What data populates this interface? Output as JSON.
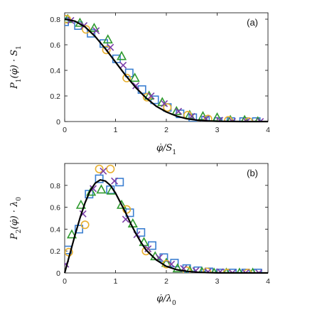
{
  "chart_data": [
    {
      "type": "scatter",
      "panel_label": "(a)",
      "xlabel": "φ̇/S",
      "xlabel_sub": "1",
      "ylabel": "P",
      "ylabel_sub": "1",
      "ylabel_tail": "(φ̇) · S",
      "ylabel_tail_sub": "1",
      "xlim": [
        0,
        4
      ],
      "ylim": [
        0,
        0.85
      ],
      "xticks": [
        "0",
        "1",
        "2",
        "3",
        "4"
      ],
      "yticks": [
        "0",
        "0.2",
        "0.4",
        "0.6",
        "0.8"
      ],
      "xtick_values": [
        0,
        1,
        2,
        3,
        4
      ],
      "ytick_values": [
        0,
        0.2,
        0.4,
        0.6,
        0.8
      ],
      "grid": false,
      "box": true,
      "fit_curve": {
        "name": "fit",
        "color": "#000000",
        "x": [
          0,
          0.2,
          0.4,
          0.6,
          0.8,
          1.0,
          1.2,
          1.4,
          1.6,
          1.8,
          2.0,
          2.2,
          2.4,
          2.6,
          2.8,
          3.0,
          3.5,
          4.0
        ],
        "y": [
          0.8,
          0.785,
          0.74,
          0.665,
          0.57,
          0.465,
          0.36,
          0.265,
          0.185,
          0.12,
          0.075,
          0.043,
          0.022,
          0.011,
          0.005,
          0.002,
          0.0,
          0.0
        ]
      },
      "series": [
        {
          "name": "squares",
          "marker": "square",
          "color": "#3b7fd1",
          "x": [
            0.0,
            0.27,
            0.52,
            0.77,
            1.02,
            1.27,
            1.52,
            1.77,
            2.02,
            2.27,
            2.52,
            2.77,
            3.02,
            3.27,
            3.52,
            3.77
          ],
          "y": [
            0.78,
            0.75,
            0.69,
            0.61,
            0.49,
            0.38,
            0.25,
            0.17,
            0.11,
            0.06,
            0.03,
            0.01,
            0.0,
            0.0,
            0.0,
            0.0
          ]
        },
        {
          "name": "triangles",
          "marker": "triangle",
          "color": "#2e9a2e",
          "x": [
            0.06,
            0.3,
            0.58,
            0.85,
            1.12,
            1.38,
            1.66,
            1.92,
            2.2,
            2.46,
            2.72,
            3.0,
            3.26,
            3.54,
            3.8
          ],
          "y": [
            0.8,
            0.77,
            0.73,
            0.64,
            0.51,
            0.34,
            0.2,
            0.15,
            0.08,
            0.05,
            0.04,
            0.03,
            0.01,
            0.01,
            0.0
          ]
        },
        {
          "name": "circles",
          "marker": "circle",
          "color": "#e8b030",
          "x": [
            0.04,
            0.42,
            0.82,
            1.22,
            1.62,
            2.02,
            2.42,
            2.82,
            3.22,
            3.62
          ],
          "y": [
            0.8,
            0.72,
            0.56,
            0.34,
            0.19,
            0.11,
            0.05,
            0.02,
            0.01,
            0.0
          ]
        },
        {
          "name": "crosses",
          "marker": "x",
          "color": "#7b3fa8",
          "x": [
            0.12,
            0.38,
            0.62,
            0.9,
            1.15,
            1.4,
            1.7,
            1.96,
            2.24,
            2.5,
            2.78,
            3.05,
            3.3,
            3.58,
            3.85
          ],
          "y": [
            0.79,
            0.75,
            0.71,
            0.58,
            0.44,
            0.28,
            0.2,
            0.14,
            0.08,
            0.04,
            0.02,
            0.01,
            0.0,
            0.0,
            0.0
          ]
        }
      ]
    },
    {
      "type": "scatter",
      "panel_label": "(b)",
      "xlabel": "φ̇/λ",
      "xlabel_sub": "0",
      "ylabel": "P",
      "ylabel_sub": "2",
      "ylabel_tail": "(φ̇) · λ",
      "ylabel_tail_sub": "0",
      "xlim": [
        0,
        4
      ],
      "ylim": [
        0,
        1.0
      ],
      "xticks": [
        "0",
        "1",
        "2",
        "3",
        "4"
      ],
      "yticks": [
        "0",
        "0.2",
        "0.4",
        "0.6",
        "0.8"
      ],
      "xtick_values": [
        0,
        1,
        2,
        3,
        4
      ],
      "ytick_values": [
        0,
        0.2,
        0.4,
        0.6,
        0.8
      ],
      "grid": false,
      "box": true,
      "fit_curve": {
        "name": "fit",
        "color": "#000000",
        "x": [
          0,
          0.1,
          0.2,
          0.3,
          0.4,
          0.5,
          0.6,
          0.7,
          0.8,
          0.9,
          1.0,
          1.1,
          1.2,
          1.3,
          1.4,
          1.5,
          1.6,
          1.8,
          2.0,
          2.2,
          2.4,
          2.6,
          2.8,
          3.0,
          3.5,
          4.0
        ],
        "y": [
          0,
          0.17,
          0.34,
          0.5,
          0.64,
          0.75,
          0.82,
          0.85,
          0.84,
          0.8,
          0.73,
          0.64,
          0.55,
          0.45,
          0.36,
          0.28,
          0.21,
          0.12,
          0.06,
          0.03,
          0.015,
          0.007,
          0.003,
          0.001,
          0.0,
          0.0
        ]
      },
      "series": [
        {
          "name": "squares",
          "marker": "square",
          "color": "#3b7fd1",
          "x": [
            0.06,
            0.28,
            0.48,
            0.68,
            0.9,
            1.08,
            1.28,
            1.5,
            1.72,
            1.95,
            2.16,
            2.4,
            2.62,
            2.84,
            3.06,
            3.3,
            3.56,
            3.8
          ],
          "y": [
            0.21,
            0.4,
            0.72,
            0.86,
            0.76,
            0.83,
            0.55,
            0.37,
            0.25,
            0.14,
            0.09,
            0.04,
            0.02,
            0.01,
            0.0,
            0.0,
            0.0,
            0.0
          ]
        },
        {
          "name": "triangles",
          "marker": "triangle",
          "color": "#2e9a2e",
          "x": [
            0.14,
            0.32,
            0.52,
            0.72,
            0.92,
            1.12,
            1.34,
            1.56,
            1.78,
            2.0,
            2.22,
            2.46,
            2.7,
            2.94,
            3.18,
            3.44,
            3.7
          ],
          "y": [
            0.35,
            0.62,
            0.74,
            0.76,
            0.75,
            0.62,
            0.45,
            0.28,
            0.15,
            0.09,
            0.04,
            0.02,
            0.01,
            0.0,
            0.0,
            0.0,
            0.0
          ]
        },
        {
          "name": "circles",
          "marker": "circle",
          "color": "#e8b030",
          "x": [
            0.08,
            0.4,
            0.68,
            0.9,
            1.22,
            1.6,
            2.0,
            2.4,
            2.8,
            3.2,
            3.6
          ],
          "y": [
            0.19,
            0.44,
            0.95,
            0.95,
            0.58,
            0.2,
            0.08,
            0.02,
            0.01,
            0.0,
            0.0
          ]
        },
        {
          "name": "crosses",
          "marker": "x",
          "color": "#7b3fa8",
          "x": [
            0.02,
            0.36,
            0.56,
            0.76,
            0.98,
            1.2,
            1.42,
            1.64,
            1.86,
            2.1,
            2.34,
            2.58,
            2.82,
            3.06,
            3.3,
            3.56,
            3.82
          ],
          "y": [
            0.08,
            0.54,
            0.77,
            0.93,
            0.84,
            0.49,
            0.35,
            0.22,
            0.14,
            0.08,
            0.04,
            0.02,
            0.01,
            0.01,
            0.0,
            0.0,
            0.0
          ]
        }
      ]
    }
  ]
}
